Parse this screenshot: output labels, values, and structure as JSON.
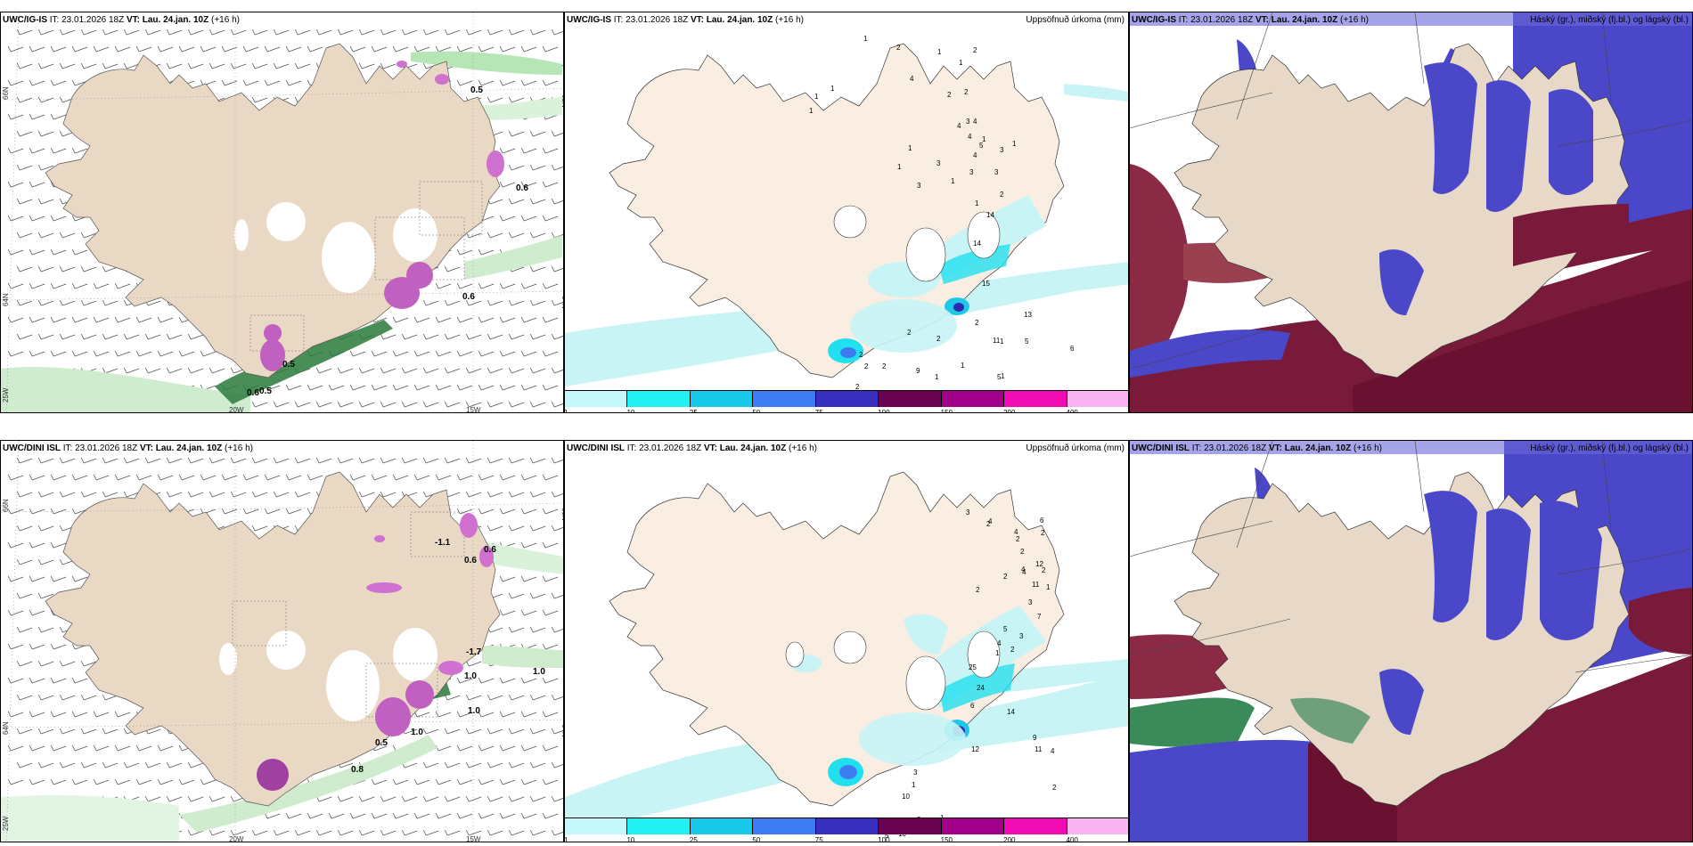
{
  "panels": {
    "wind_is": {
      "model": "UWC/IG-IS",
      "it_label": "IT:",
      "it_value": "23.01.2026 18Z",
      "vt_label": "VT:",
      "vt_value": "Lau. 24.jan. 10Z",
      "lead": "(+16 h)",
      "title_right": ""
    },
    "precip_is": {
      "model": "UWC/IG-IS",
      "it_label": "IT:",
      "it_value": "23.01.2026 18Z",
      "vt_label": "VT:",
      "vt_value": "Lau. 24.jan. 10Z",
      "lead": "(+16 h)",
      "title_right": "Uppsöfnuð úrkoma (mm)"
    },
    "cloud_is": {
      "model": "UWC/IG-IS",
      "it_label": "IT:",
      "it_value": "23.01.2026 18Z",
      "vt_label": "VT:",
      "vt_value": "Lau. 24.jan. 10Z",
      "lead": "(+16 h)",
      "title_right": "Háský (gr.), miðský (fj.bl.) og lágský (bl.)"
    },
    "wind_dini": {
      "model": "UWC/DINI ISL",
      "it_label": "IT:",
      "it_value": "23.01.2026 18Z",
      "vt_label": "VT:",
      "vt_value": "Lau. 24.jan. 10Z",
      "lead": "(+16 h)",
      "title_right": ""
    },
    "precip_dini": {
      "model": "UWC/DINI ISL",
      "it_label": "IT:",
      "it_value": "23.01.2026 18Z",
      "vt_label": "VT:",
      "vt_value": "Lau. 24.jan. 10Z",
      "lead": "(+16 h)",
      "title_right": "Uppsöfnuð úrkoma (mm)"
    },
    "cloud_dini": {
      "model": "UWC/DINI ISL",
      "it_label": "IT:",
      "it_value": "23.01.2026 18Z",
      "vt_label": "VT:",
      "vt_value": "Lau. 24.jan. 10Z",
      "lead": "(+16 h)",
      "title_right": "Háský (gr.), miðský (fj.bl.) og lágský (bl.)"
    }
  },
  "axis_labels": {
    "lat66": "66N",
    "lat64": "64N",
    "lon25": "25W",
    "lon20": "20W",
    "lon15": "15W"
  },
  "wind_labels_is": [
    "0.5",
    "0.6",
    "0.6",
    "0.5",
    "0.6",
    "0.5"
  ],
  "wind_labels_dini": [
    "-1.1",
    "0.6",
    "0.6",
    "-1.7",
    "1.0",
    "1.0",
    "1.0",
    "0.8",
    "1.0",
    "0.5"
  ],
  "precip_labels_is": [
    "1",
    "2",
    "1",
    "1",
    "2",
    "2",
    "1",
    "1",
    "1",
    "4",
    "2",
    "3",
    "1",
    "3",
    "4",
    "1",
    "1",
    "3",
    "4",
    "4",
    "3",
    "3",
    "1",
    "4",
    "2",
    "5",
    "3",
    "1",
    "14",
    "14",
    "1",
    "15",
    "13",
    "6",
    "5",
    "5",
    "1",
    "11",
    "2",
    "2",
    "2",
    "2",
    "2",
    "2",
    "2",
    "9",
    "2",
    "1",
    "1",
    "1"
  ],
  "precip_labels_dini": [
    "3",
    "4",
    "4",
    "6",
    "2",
    "2",
    "2",
    "2",
    "2",
    "4",
    "2",
    "2",
    "12",
    "11",
    "4",
    "1",
    "3",
    "7",
    "5",
    "3",
    "4",
    "2",
    "1",
    "25",
    "24",
    "6",
    "14",
    "9",
    "11",
    "4",
    "12",
    "2",
    "10",
    "6",
    "5",
    "10",
    "27",
    "6",
    "3",
    "3",
    "1",
    "2",
    "1",
    "1",
    "3",
    "3"
  ],
  "colorbar": {
    "ticks": [
      "1",
      "10",
      "25",
      "50",
      "75",
      "100",
      "150",
      "200",
      "400"
    ],
    "colors": [
      "#c6f7fa",
      "#20f0f0",
      "#18c8e8",
      "#3c7cf0",
      "#3a30c0",
      "#6a0050",
      "#a0008a",
      "#f00cb4",
      "#f8b4f0"
    ]
  },
  "colors": {
    "land": "#f0dcc6",
    "precip_light": "#c8f4f6",
    "cloud_high": "#7a1a3a",
    "cloud_mid": "#4a48c8",
    "cloud_low": "#3a8a5a"
  }
}
